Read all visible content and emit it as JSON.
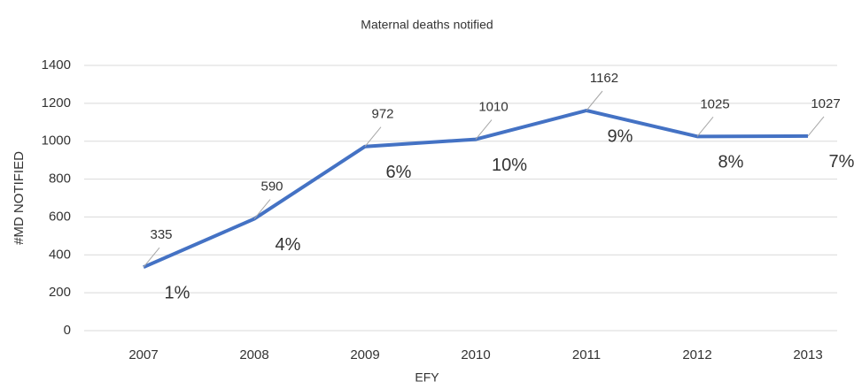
{
  "chart_data": {
    "type": "line",
    "title": "Maternal deaths notified",
    "x_label": "EFY",
    "y_label": "#MD NOTIFIED",
    "categories": [
      "2007",
      "2008",
      "2009",
      "2010",
      "2011",
      "2012",
      "2013"
    ],
    "series": [
      {
        "name": "#MD NOTIFIED",
        "color": "#4472c4",
        "values": [
          335,
          590,
          972,
          1010,
          1162,
          1025,
          1027
        ]
      }
    ],
    "annotations": [
      "1%",
      "4%",
      "6%",
      "10%",
      "9%",
      "8%",
      "7%"
    ],
    "ylim": [
      0,
      1400
    ],
    "yticks": [
      0,
      200,
      400,
      600,
      800,
      1000,
      1200,
      1400
    ],
    "grid": true
  }
}
